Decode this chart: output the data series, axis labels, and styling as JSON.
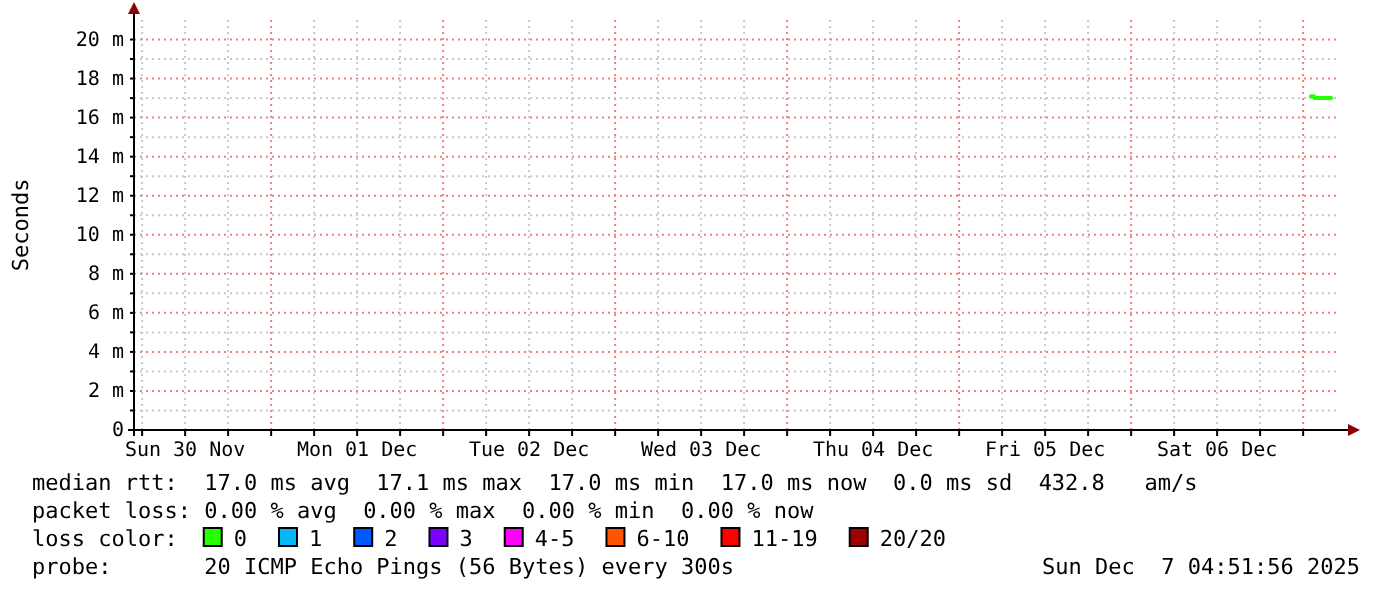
{
  "chart_data": {
    "type": "line",
    "ylabel": "Seconds",
    "legend_title": "loss color:",
    "legend": "bottom",
    "grid": true,
    "xlim": [
      "2025-11-30T04:52",
      "2025-12-07T04:52"
    ],
    "xticks": [
      {
        "value": "2025-11-30T06:00",
        "label": null
      },
      {
        "value": "2025-11-30T12:00",
        "label": "Sun 30 Nov"
      },
      {
        "value": "2025-11-30T18:00",
        "label": null
      },
      {
        "value": "2025-12-01T00:00",
        "label": null
      },
      {
        "value": "2025-12-01T06:00",
        "label": null
      },
      {
        "value": "2025-12-01T12:00",
        "label": "Mon 01 Dec"
      },
      {
        "value": "2025-12-01T18:00",
        "label": null
      },
      {
        "value": "2025-12-02T00:00",
        "label": null
      },
      {
        "value": "2025-12-02T06:00",
        "label": null
      },
      {
        "value": "2025-12-02T12:00",
        "label": "Tue 02 Dec"
      },
      {
        "value": "2025-12-02T18:00",
        "label": null
      },
      {
        "value": "2025-12-03T00:00",
        "label": null
      },
      {
        "value": "2025-12-03T06:00",
        "label": null
      },
      {
        "value": "2025-12-03T12:00",
        "label": "Wed 03 Dec"
      },
      {
        "value": "2025-12-03T18:00",
        "label": null
      },
      {
        "value": "2025-12-04T00:00",
        "label": null
      },
      {
        "value": "2025-12-04T06:00",
        "label": null
      },
      {
        "value": "2025-12-04T12:00",
        "label": "Thu 04 Dec"
      },
      {
        "value": "2025-12-04T18:00",
        "label": null
      },
      {
        "value": "2025-12-05T00:00",
        "label": null
      },
      {
        "value": "2025-12-05T06:00",
        "label": null
      },
      {
        "value": "2025-12-05T12:00",
        "label": "Fri 05 Dec"
      },
      {
        "value": "2025-12-05T18:00",
        "label": null
      },
      {
        "value": "2025-12-06T00:00",
        "label": null
      },
      {
        "value": "2025-12-06T06:00",
        "label": null
      },
      {
        "value": "2025-12-06T12:00",
        "label": "Sat 06 Dec"
      },
      {
        "value": "2025-12-06T18:00",
        "label": null
      },
      {
        "value": "2025-12-07T00:00",
        "label": null
      }
    ],
    "ylim": [
      0,
      21
    ],
    "yticks": [
      0,
      {
        "value": 1,
        "label": null
      },
      {
        "value": 2,
        "label": "2 m"
      },
      {
        "value": 3,
        "label": null
      },
      {
        "value": 4,
        "label": "4 m"
      },
      {
        "value": 5,
        "label": null
      },
      {
        "value": 6,
        "label": "6 m"
      },
      {
        "value": 7,
        "label": null
      },
      {
        "value": 8,
        "label": "8 m"
      },
      {
        "value": 9,
        "label": null
      },
      {
        "value": 10,
        "label": "10 m"
      },
      {
        "value": 11,
        "label": null
      },
      {
        "value": 12,
        "label": "12 m"
      },
      {
        "value": 13,
        "label": null
      },
      {
        "value": 14,
        "label": "14 m"
      },
      {
        "value": 15,
        "label": null
      },
      {
        "value": 16,
        "label": "16 m"
      },
      {
        "value": 17,
        "label": null
      },
      {
        "value": 18,
        "label": "18 m"
      },
      {
        "value": 19,
        "label": null
      },
      {
        "value": 20,
        "label": "20 m"
      }
    ],
    "series": [
      {
        "name": "0",
        "color": "#26ff00",
        "x": [
          "2025-12-07T01:05",
          "2025-12-07T01:30",
          "2025-12-07T01:35",
          "2025-12-07T03:55"
        ],
        "values": [
          17.1,
          17.1,
          17.0,
          17.0
        ]
      },
      {
        "name": "1",
        "color": "#00b8ff"
      },
      {
        "name": "2",
        "color": "#0059ff"
      },
      {
        "name": "3",
        "color": "#7e00ff"
      },
      {
        "name": "4-5",
        "color": "#ff00ff"
      },
      {
        "name": "6-10",
        "color": "#ff5500"
      },
      {
        "name": "11-19",
        "color": "#ff0000"
      },
      {
        "name": "20/20",
        "color": "#a10000"
      }
    ],
    "annotations": [
      "median rtt:  17.0 ms avg  17.1 ms max  17.0 ms min  17.0 ms now  0.0 ms sd  432.8   am/s",
      "packet loss: 0.00 % avg  0.00 % max  0.00 % min  0.00 % now",
      "probe:       20 ICMP Echo Pings (56 Bytes) every 300s",
      "Sun Dec  7 04:51:56 2025"
    ]
  }
}
